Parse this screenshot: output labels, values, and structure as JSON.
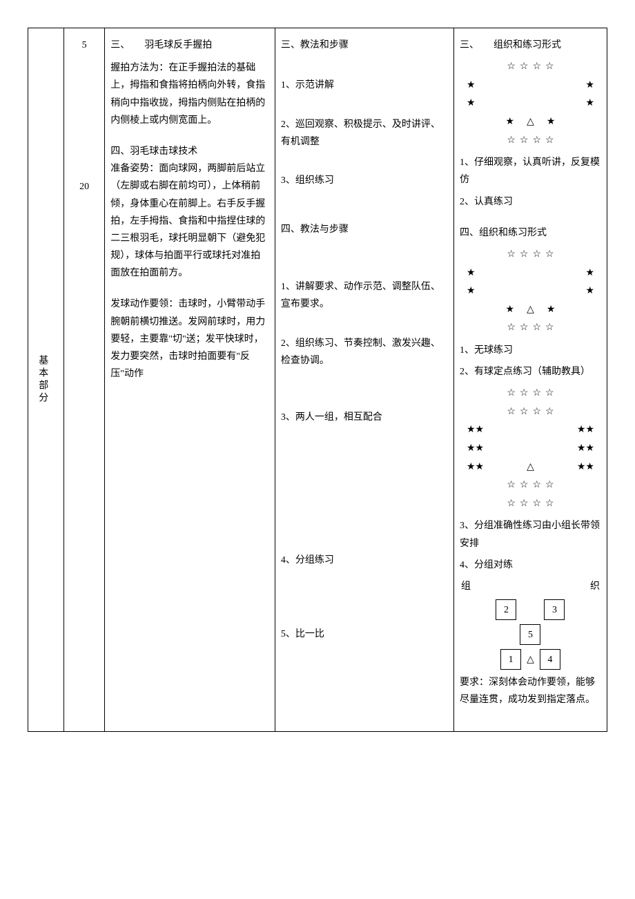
{
  "section": {
    "label": "基本部分"
  },
  "time": {
    "t1": "5",
    "t2": "20"
  },
  "content": {
    "heading3": "三、　　羽毛球反手握拍",
    "body3": "握拍方法为：在正手握拍法的基础上，拇指和食指将拍柄向外转，食指稍向中指收拢，拇指内侧贴在拍柄的内侧棱上或内侧宽面上。",
    "heading4a": "四、羽毛球击球技术",
    "body4a": "准备姿势：面向球网，两脚前后站立（左脚或右脚在前均可），上体稍前倾，身体重心在前脚上。右手反手握拍，左手拇指、食指和中指捏住球的二三根羽毛，球托明显朝下（避免犯规），球体与拍面平行或球托对准拍面放在拍面前方。",
    "body4b": "发球动作要领：击球时，小臂带动手腕朝前横切推送。发网前球时，用力要轻，主要靠\"切\"送；发平快球时，发力要突然，击球时拍面要有\"反压\"动作"
  },
  "methods": {
    "heading3": "三、教法和步骤",
    "m3_1": "1、示范讲解",
    "m3_2": "2、巡回观察、积极提示、及时讲评、有机调整",
    "m3_3": "3、组织练习",
    "heading4": "四、教法与步骤",
    "m4_1": "1、讲解要求、动作示范、调整队伍、宣布要求。",
    "m4_2": "2、组织练习、节奏控制、激发兴趣、检查协调。",
    "m4_3": "3、两人一组，相互配合",
    "m4_4": "4、分组练习",
    "m4_5": "5、比一比"
  },
  "formation": {
    "heading3": "三、　　组织和练习形式",
    "f3_1": "1、仔细观察，认真听讲，反复模仿",
    "f3_2": "2、认真练习",
    "heading4": "四、组织和练习形式",
    "f4_1": "1、无球练习",
    "f4_2": "2、有球定点练习（辅助教具）",
    "f4_3": "3、分组准确性练习由小组长带领安排",
    "f4_4": "4、分组对练",
    "org_left": "组",
    "org_right": "织",
    "box1": "1",
    "box2": "2",
    "box3": "3",
    "box4": "4",
    "box5": "5",
    "req": "要求：深刻体会动作要领，能够尽量连贯，成功发到指定落点。"
  },
  "symbols": {
    "hollow_star": "☆",
    "solid_star": "★",
    "triangle": "△"
  }
}
